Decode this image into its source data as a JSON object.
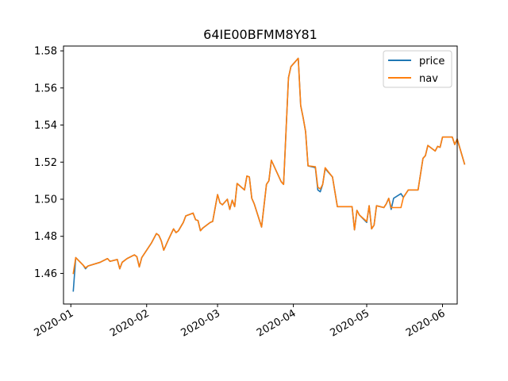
{
  "chart_data": {
    "type": "line",
    "title": "64IE00BFMM8Y81",
    "xlabel": "",
    "ylabel": "",
    "x_ticks": [
      "2020-01",
      "2020-02",
      "2020-03",
      "2020-04",
      "2020-05",
      "2020-06"
    ],
    "y_ticks": [
      "1.46",
      "1.48",
      "1.50",
      "1.52",
      "1.54",
      "1.56",
      "1.58"
    ],
    "ylim": [
      1.4435,
      1.5826
    ],
    "xlim": [
      "2019-12-29",
      "2020-06-07"
    ],
    "grid": false,
    "legend_position": "upper right",
    "series": [
      {
        "name": "price",
        "color": "#1f77b4",
        "points": [
          [
            "2020-01-02",
            1.4505
          ],
          [
            "2020-01-03",
            1.4685
          ],
          [
            "2020-01-06",
            1.4645
          ],
          [
            "2020-01-07",
            1.4625
          ],
          [
            "2020-01-08",
            1.464
          ],
          [
            "2020-01-13",
            1.466
          ],
          [
            "2020-01-16",
            1.468
          ],
          [
            "2020-01-17",
            1.4665
          ],
          [
            "2020-01-20",
            1.4675
          ],
          [
            "2020-01-21",
            1.4625
          ],
          [
            "2020-01-22",
            1.466
          ],
          [
            "2020-01-24",
            1.468
          ],
          [
            "2020-01-27",
            1.47
          ],
          [
            "2020-01-28",
            1.469
          ],
          [
            "2020-01-29",
            1.4635
          ],
          [
            "2020-01-30",
            1.4685
          ],
          [
            "2020-02-03",
            1.4765
          ],
          [
            "2020-02-05",
            1.4815
          ],
          [
            "2020-02-06",
            1.4805
          ],
          [
            "2020-02-07",
            1.4775
          ],
          [
            "2020-02-08",
            1.4725
          ],
          [
            "2020-02-10",
            1.4785
          ],
          [
            "2020-02-12",
            1.484
          ],
          [
            "2020-02-13",
            1.482
          ],
          [
            "2020-02-14",
            1.483
          ],
          [
            "2020-02-16",
            1.4875
          ],
          [
            "2020-02-17",
            1.491
          ],
          [
            "2020-02-20",
            1.4925
          ],
          [
            "2020-02-21",
            1.489
          ],
          [
            "2020-02-22",
            1.4885
          ],
          [
            "2020-02-23",
            1.483
          ],
          [
            "2020-02-24",
            1.4845
          ],
          [
            "2020-02-27",
            1.4875
          ],
          [
            "2020-02-28",
            1.488
          ],
          [
            "2020-03-01",
            1.5025
          ],
          [
            "2020-03-02",
            1.498
          ],
          [
            "2020-03-03",
            1.497
          ],
          [
            "2020-03-05",
            1.5
          ],
          [
            "2020-03-06",
            1.4945
          ],
          [
            "2020-03-07",
            1.4995
          ],
          [
            "2020-03-08",
            1.496
          ],
          [
            "2020-03-09",
            1.5085
          ],
          [
            "2020-03-12",
            1.505
          ],
          [
            "2020-03-13",
            1.5125
          ],
          [
            "2020-03-14",
            1.512
          ],
          [
            "2020-03-15",
            1.5005
          ],
          [
            "2020-03-16",
            1.4975
          ],
          [
            "2020-03-19",
            1.485
          ],
          [
            "2020-03-21",
            1.508
          ],
          [
            "2020-03-22",
            1.51
          ],
          [
            "2020-03-23",
            1.521
          ],
          [
            "2020-03-27",
            1.5095
          ],
          [
            "2020-03-28",
            1.508
          ],
          [
            "2020-03-30",
            1.5655
          ],
          [
            "2020-03-31",
            1.5715
          ],
          [
            "2020-04-03",
            1.576
          ],
          [
            "2020-04-04",
            1.5505
          ],
          [
            "2020-04-05",
            1.544
          ],
          [
            "2020-04-06",
            1.5365
          ],
          [
            "2020-04-07",
            1.518
          ],
          [
            "2020-04-10",
            1.517
          ],
          [
            "2020-04-11",
            1.505
          ],
          [
            "2020-04-12",
            1.504
          ],
          [
            "2020-04-13",
            1.508
          ],
          [
            "2020-04-14",
            1.5165
          ],
          [
            "2020-04-17",
            1.512
          ],
          [
            "2020-04-19",
            1.496
          ],
          [
            "2020-04-25",
            1.496
          ],
          [
            "2020-04-26",
            1.4835
          ],
          [
            "2020-04-27",
            1.494
          ],
          [
            "2020-04-28",
            1.4915
          ],
          [
            "2020-05-01",
            1.4875
          ],
          [
            "2020-05-02",
            1.4965
          ],
          [
            "2020-05-03",
            1.484
          ],
          [
            "2020-05-04",
            1.486
          ],
          [
            "2020-05-05",
            1.4965
          ],
          [
            "2020-05-08",
            1.4955
          ],
          [
            "2020-05-09",
            1.4975
          ],
          [
            "2020-05-10",
            1.5005
          ],
          [
            "2020-05-11",
            1.4945
          ],
          [
            "2020-05-12",
            1.5005
          ],
          [
            "2020-05-15",
            1.503
          ],
          [
            "2020-05-16",
            1.501
          ],
          [
            "2020-05-18",
            1.505
          ],
          [
            "2020-05-22",
            1.505
          ],
          [
            "2020-05-24",
            1.522
          ],
          [
            "2020-05-25",
            1.5235
          ],
          [
            "2020-05-26",
            1.529
          ],
          [
            "2020-05-29",
            1.526
          ],
          [
            "2020-05-30",
            1.5285
          ],
          [
            "2020-05-31",
            1.528
          ],
          [
            "2020-06-01",
            1.5335
          ],
          [
            "2020-06-05",
            1.5335
          ],
          [
            "2020-06-06",
            1.5295
          ],
          [
            "2020-06-07",
            1.5325
          ],
          [
            "2020-06-10",
            1.519
          ]
        ]
      },
      {
        "name": "nav",
        "color": "#ff7f0e",
        "points": [
          [
            "2020-01-02",
            1.46
          ],
          [
            "2020-01-03",
            1.4685
          ],
          [
            "2020-01-06",
            1.4645
          ],
          [
            "2020-01-07",
            1.463
          ],
          [
            "2020-01-08",
            1.464
          ],
          [
            "2020-01-13",
            1.466
          ],
          [
            "2020-01-16",
            1.468
          ],
          [
            "2020-01-17",
            1.4665
          ],
          [
            "2020-01-20",
            1.4675
          ],
          [
            "2020-01-21",
            1.4625
          ],
          [
            "2020-01-22",
            1.466
          ],
          [
            "2020-01-24",
            1.468
          ],
          [
            "2020-01-27",
            1.47
          ],
          [
            "2020-01-28",
            1.469
          ],
          [
            "2020-01-29",
            1.4635
          ],
          [
            "2020-01-30",
            1.4685
          ],
          [
            "2020-02-03",
            1.4765
          ],
          [
            "2020-02-05",
            1.4815
          ],
          [
            "2020-02-06",
            1.4805
          ],
          [
            "2020-02-07",
            1.4775
          ],
          [
            "2020-02-08",
            1.4725
          ],
          [
            "2020-02-10",
            1.4785
          ],
          [
            "2020-02-12",
            1.484
          ],
          [
            "2020-02-13",
            1.482
          ],
          [
            "2020-02-14",
            1.483
          ],
          [
            "2020-02-16",
            1.4875
          ],
          [
            "2020-02-17",
            1.491
          ],
          [
            "2020-02-20",
            1.4925
          ],
          [
            "2020-02-21",
            1.489
          ],
          [
            "2020-02-22",
            1.4885
          ],
          [
            "2020-02-23",
            1.483
          ],
          [
            "2020-02-24",
            1.4845
          ],
          [
            "2020-02-27",
            1.4875
          ],
          [
            "2020-02-28",
            1.488
          ],
          [
            "2020-03-01",
            1.5025
          ],
          [
            "2020-03-02",
            1.498
          ],
          [
            "2020-03-03",
            1.497
          ],
          [
            "2020-03-05",
            1.5
          ],
          [
            "2020-03-06",
            1.4945
          ],
          [
            "2020-03-07",
            1.4995
          ],
          [
            "2020-03-08",
            1.496
          ],
          [
            "2020-03-09",
            1.5085
          ],
          [
            "2020-03-12",
            1.505
          ],
          [
            "2020-03-13",
            1.5125
          ],
          [
            "2020-03-14",
            1.512
          ],
          [
            "2020-03-15",
            1.5005
          ],
          [
            "2020-03-16",
            1.4975
          ],
          [
            "2020-03-19",
            1.485
          ],
          [
            "2020-03-21",
            1.508
          ],
          [
            "2020-03-22",
            1.51
          ],
          [
            "2020-03-23",
            1.521
          ],
          [
            "2020-03-27",
            1.5095
          ],
          [
            "2020-03-28",
            1.508
          ],
          [
            "2020-03-30",
            1.5655
          ],
          [
            "2020-03-31",
            1.5715
          ],
          [
            "2020-04-03",
            1.576
          ],
          [
            "2020-04-04",
            1.5505
          ],
          [
            "2020-04-05",
            1.544
          ],
          [
            "2020-04-06",
            1.5365
          ],
          [
            "2020-04-07",
            1.518
          ],
          [
            "2020-04-10",
            1.5175
          ],
          [
            "2020-04-11",
            1.5065
          ],
          [
            "2020-04-12",
            1.5055
          ],
          [
            "2020-04-13",
            1.508
          ],
          [
            "2020-04-14",
            1.517
          ],
          [
            "2020-04-17",
            1.512
          ],
          [
            "2020-04-19",
            1.496
          ],
          [
            "2020-04-25",
            1.496
          ],
          [
            "2020-04-26",
            1.4835
          ],
          [
            "2020-04-27",
            1.494
          ],
          [
            "2020-04-28",
            1.4915
          ],
          [
            "2020-05-01",
            1.488
          ],
          [
            "2020-05-02",
            1.4965
          ],
          [
            "2020-05-03",
            1.484
          ],
          [
            "2020-05-04",
            1.486
          ],
          [
            "2020-05-05",
            1.4965
          ],
          [
            "2020-05-08",
            1.4955
          ],
          [
            "2020-05-09",
            1.4975
          ],
          [
            "2020-05-10",
            1.5005
          ],
          [
            "2020-05-11",
            1.4955
          ],
          [
            "2020-05-12",
            1.4955
          ],
          [
            "2020-05-15",
            1.4955
          ],
          [
            "2020-05-16",
            1.501
          ],
          [
            "2020-05-18",
            1.505
          ],
          [
            "2020-05-22",
            1.505
          ],
          [
            "2020-05-24",
            1.522
          ],
          [
            "2020-05-25",
            1.5235
          ],
          [
            "2020-05-26",
            1.529
          ],
          [
            "2020-05-29",
            1.526
          ],
          [
            "2020-05-30",
            1.5285
          ],
          [
            "2020-05-31",
            1.528
          ],
          [
            "2020-06-01",
            1.5335
          ],
          [
            "2020-06-05",
            1.5335
          ],
          [
            "2020-06-06",
            1.5295
          ],
          [
            "2020-06-07",
            1.5325
          ],
          [
            "2020-06-10",
            1.519
          ]
        ]
      }
    ]
  }
}
